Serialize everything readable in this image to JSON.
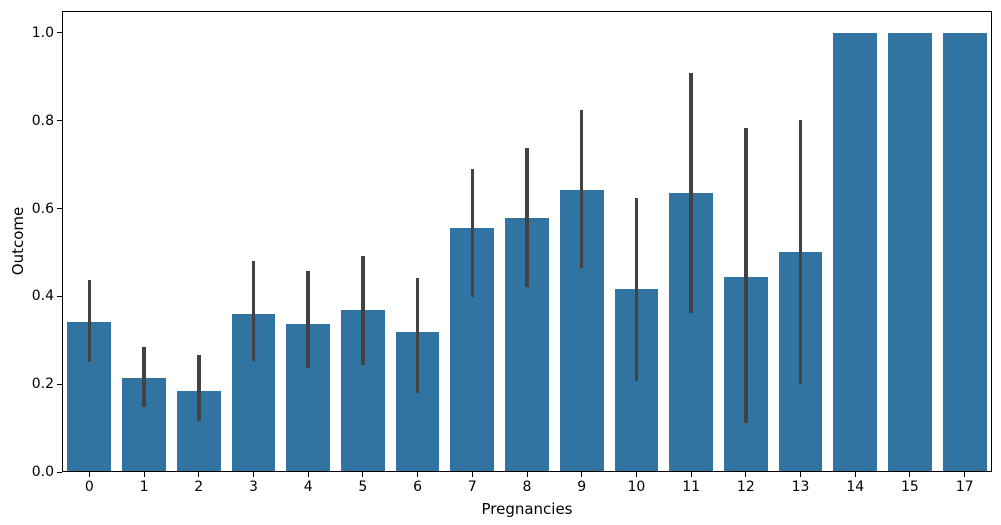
{
  "chart_data": {
    "type": "bar",
    "title": "",
    "xlabel": "Pregnancies",
    "ylabel": "Outcome",
    "categories": [
      "0",
      "1",
      "2",
      "3",
      "4",
      "5",
      "6",
      "7",
      "8",
      "9",
      "10",
      "11",
      "12",
      "13",
      "14",
      "15",
      "17"
    ],
    "values": [
      0.342,
      0.215,
      0.184,
      0.36,
      0.338,
      0.368,
      0.32,
      0.556,
      0.579,
      0.643,
      0.417,
      0.636,
      0.444,
      0.5,
      1.0,
      1.0,
      1.0
    ],
    "error_bars": [
      [
        0.251,
        0.437
      ],
      [
        0.148,
        0.285
      ],
      [
        0.117,
        0.267
      ],
      [
        0.253,
        0.481
      ],
      [
        0.236,
        0.458
      ],
      [
        0.244,
        0.492
      ],
      [
        0.18,
        0.441
      ],
      [
        0.399,
        0.689
      ],
      [
        0.421,
        0.738
      ],
      [
        0.465,
        0.824
      ],
      [
        0.208,
        0.625
      ],
      [
        0.362,
        0.909
      ],
      [
        0.111,
        0.783
      ],
      [
        0.2,
        0.801
      ],
      null,
      null,
      null
    ],
    "ytick_labels": [
      "0.0",
      "0.2",
      "0.4",
      "0.6",
      "0.8",
      "1.0"
    ],
    "ytick_values": [
      0.0,
      0.2,
      0.4,
      0.6,
      0.8,
      1.0
    ],
    "ylim": [
      0.0,
      1.05
    ],
    "bar_width_fraction": 0.8,
    "grid": false,
    "legend": null,
    "bar_color": "#3274a1",
    "error_color": "#424242",
    "axis_color": "#000000"
  }
}
